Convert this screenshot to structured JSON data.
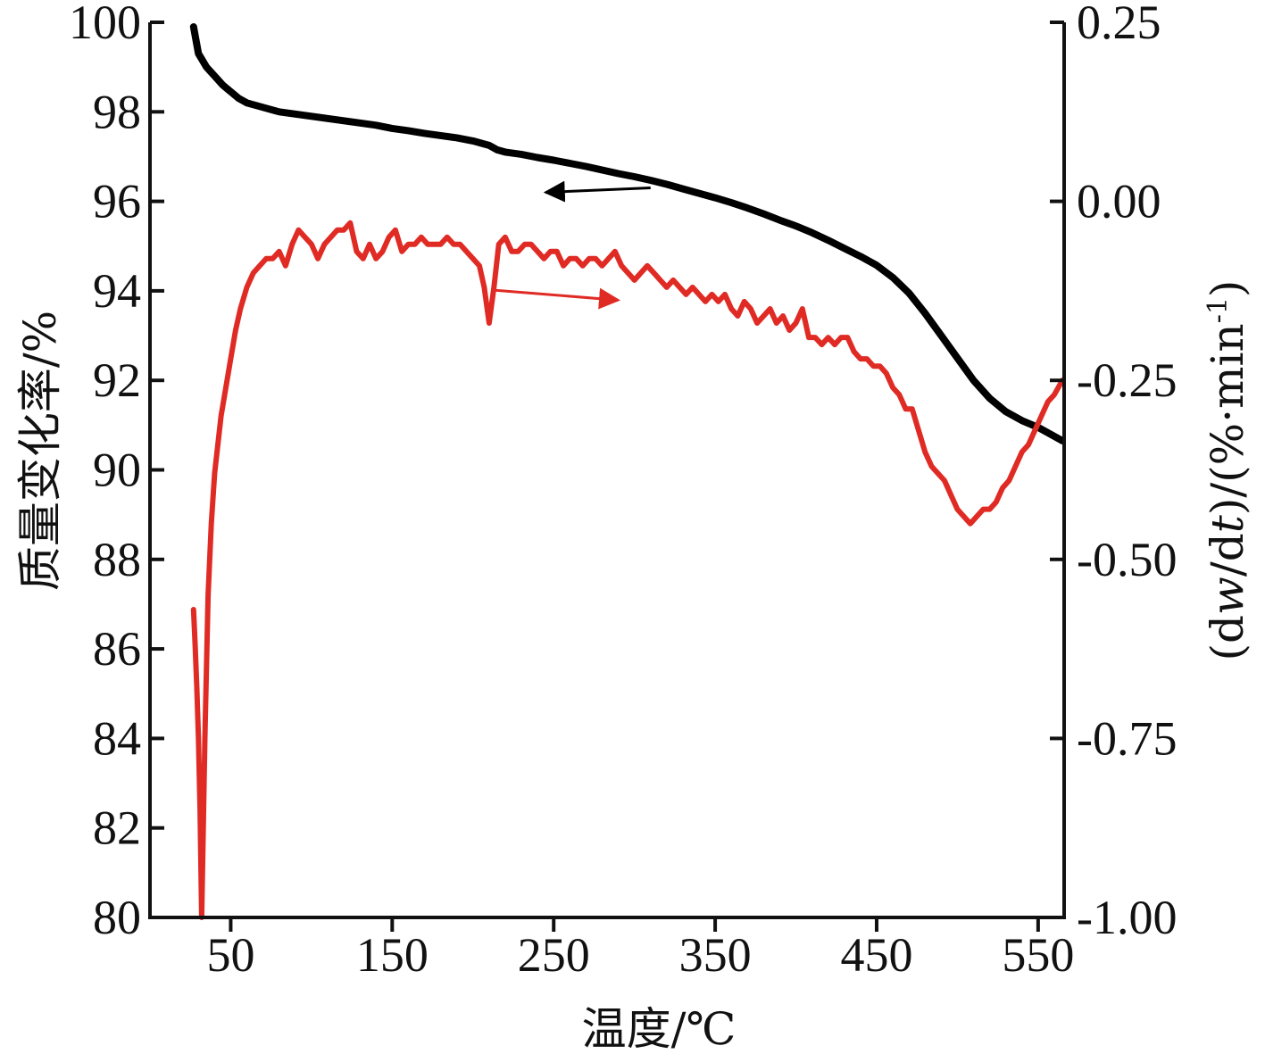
{
  "chart_data": {
    "type": "line",
    "title": "",
    "xlabel": "温度/℃",
    "ylabel_left": "质量变化率/%",
    "ylabel_right": "(dw/dt)/(%·min-1)",
    "ylabel_right_parts": {
      "open": "(d",
      "w": "w",
      "mid": "/d",
      "t": "t",
      "close": ")/(%·min",
      "sup": "-1",
      "end": ")"
    },
    "x_ticks": [
      50,
      150,
      250,
      350,
      450,
      550
    ],
    "y_left_ticks": [
      80,
      82,
      84,
      86,
      88,
      90,
      92,
      94,
      96,
      98,
      100
    ],
    "y_right_ticks": [
      "-1.00",
      "-0.75",
      "-0.50",
      "-0.25",
      "0.00",
      "0.25"
    ],
    "y_right_tick_values": [
      -1.0,
      -0.75,
      -0.5,
      -0.25,
      0.0,
      0.25
    ],
    "xlim": [
      0,
      565
    ],
    "ylim_left": [
      80,
      100
    ],
    "ylim_right": [
      -1.0,
      0.25
    ],
    "grid": false,
    "colors": {
      "mass": "#000000",
      "dtg": "#e02b25",
      "arrow_dtg": "#e02b25",
      "arrow_mass": "#000000"
    },
    "series": [
      {
        "axis": "left",
        "color": "#000000",
        "x": [
          27,
          30,
          35,
          40,
          45,
          50,
          55,
          60,
          65,
          70,
          80,
          90,
          100,
          110,
          120,
          130,
          140,
          150,
          160,
          170,
          180,
          190,
          200,
          205,
          210,
          215,
          220,
          230,
          240,
          250,
          260,
          270,
          280,
          290,
          300,
          310,
          320,
          330,
          340,
          350,
          360,
          370,
          380,
          390,
          400,
          410,
          420,
          430,
          440,
          450,
          460,
          470,
          480,
          490,
          500,
          510,
          520,
          530,
          540,
          550,
          560,
          565
        ],
        "y": [
          99.9,
          99.3,
          99.0,
          98.8,
          98.6,
          98.45,
          98.3,
          98.2,
          98.15,
          98.1,
          98.0,
          97.95,
          97.9,
          97.85,
          97.8,
          97.75,
          97.7,
          97.63,
          97.58,
          97.52,
          97.47,
          97.42,
          97.35,
          97.3,
          97.25,
          97.15,
          97.1,
          97.05,
          96.98,
          96.92,
          96.85,
          96.78,
          96.7,
          96.62,
          96.55,
          96.47,
          96.38,
          96.28,
          96.18,
          96.08,
          95.97,
          95.85,
          95.72,
          95.58,
          95.45,
          95.3,
          95.13,
          94.95,
          94.77,
          94.57,
          94.3,
          93.95,
          93.5,
          93.0,
          92.5,
          92.0,
          91.6,
          91.3,
          91.1,
          90.95,
          90.75,
          90.65
        ]
      },
      {
        "axis": "right",
        "color": "#e02b25",
        "x": [
          27,
          28,
          29,
          30,
          31,
          32,
          34,
          36,
          38,
          40,
          42,
          44,
          47,
          50,
          53,
          56,
          60,
          64,
          68,
          72,
          76,
          80,
          84,
          88,
          92,
          96,
          100,
          104,
          108,
          112,
          116,
          120,
          124,
          128,
          132,
          136,
          140,
          144,
          148,
          152,
          156,
          160,
          164,
          168,
          172,
          176,
          180,
          184,
          188,
          192,
          196,
          200,
          204,
          207,
          210,
          213,
          216,
          220,
          224,
          228,
          232,
          236,
          240,
          244,
          248,
          252,
          256,
          260,
          264,
          268,
          272,
          276,
          280,
          284,
          288,
          292,
          296,
          300,
          304,
          308,
          312,
          316,
          320,
          324,
          328,
          332,
          336,
          340,
          344,
          348,
          352,
          356,
          360,
          364,
          368,
          372,
          376,
          380,
          384,
          388,
          392,
          396,
          400,
          404,
          408,
          412,
          416,
          420,
          424,
          428,
          432,
          436,
          440,
          444,
          448,
          452,
          456,
          460,
          464,
          468,
          472,
          476,
          480,
          484,
          488,
          492,
          496,
          500,
          504,
          508,
          512,
          516,
          520,
          524,
          528,
          532,
          536,
          540,
          544,
          548,
          552,
          556,
          560,
          565
        ],
        "y": [
          -0.57,
          -0.62,
          -0.68,
          -0.75,
          -0.85,
          -1.0,
          -0.75,
          -0.55,
          -0.45,
          -0.38,
          -0.34,
          -0.3,
          -0.26,
          -0.22,
          -0.18,
          -0.15,
          -0.12,
          -0.1,
          -0.09,
          -0.08,
          -0.08,
          -0.07,
          -0.09,
          -0.06,
          -0.04,
          -0.05,
          -0.06,
          -0.08,
          -0.06,
          -0.05,
          -0.04,
          -0.04,
          -0.03,
          -0.07,
          -0.08,
          -0.06,
          -0.08,
          -0.07,
          -0.05,
          -0.04,
          -0.07,
          -0.06,
          -0.06,
          -0.05,
          -0.06,
          -0.06,
          -0.06,
          -0.05,
          -0.06,
          -0.06,
          -0.07,
          -0.08,
          -0.09,
          -0.12,
          -0.17,
          -0.12,
          -0.06,
          -0.05,
          -0.07,
          -0.07,
          -0.06,
          -0.06,
          -0.07,
          -0.08,
          -0.07,
          -0.07,
          -0.09,
          -0.08,
          -0.08,
          -0.09,
          -0.08,
          -0.08,
          -0.09,
          -0.08,
          -0.07,
          -0.09,
          -0.1,
          -0.11,
          -0.1,
          -0.09,
          -0.1,
          -0.11,
          -0.12,
          -0.11,
          -0.12,
          -0.13,
          -0.12,
          -0.13,
          -0.14,
          -0.13,
          -0.14,
          -0.13,
          -0.15,
          -0.16,
          -0.14,
          -0.15,
          -0.17,
          -0.16,
          -0.15,
          -0.17,
          -0.16,
          -0.18,
          -0.17,
          -0.15,
          -0.19,
          -0.19,
          -0.2,
          -0.19,
          -0.2,
          -0.19,
          -0.19,
          -0.21,
          -0.22,
          -0.22,
          -0.23,
          -0.23,
          -0.24,
          -0.26,
          -0.27,
          -0.29,
          -0.29,
          -0.32,
          -0.35,
          -0.37,
          -0.38,
          -0.39,
          -0.41,
          -0.43,
          -0.44,
          -0.45,
          -0.44,
          -0.43,
          -0.43,
          -0.42,
          -0.4,
          -0.39,
          -0.37,
          -0.35,
          -0.34,
          -0.32,
          -0.3,
          -0.28,
          -0.27,
          -0.25
        ]
      }
    ],
    "annotations": [
      {
        "kind": "arrow",
        "target_axis": "left",
        "color": "#000000",
        "from": [
          310,
          96.3
        ],
        "to": [
          245,
          96.2
        ]
      },
      {
        "kind": "arrow",
        "target_axis": "right",
        "color": "#e02b25",
        "from": [
          213,
          -0.124
        ],
        "to": [
          290,
          -0.138
        ]
      }
    ]
  }
}
